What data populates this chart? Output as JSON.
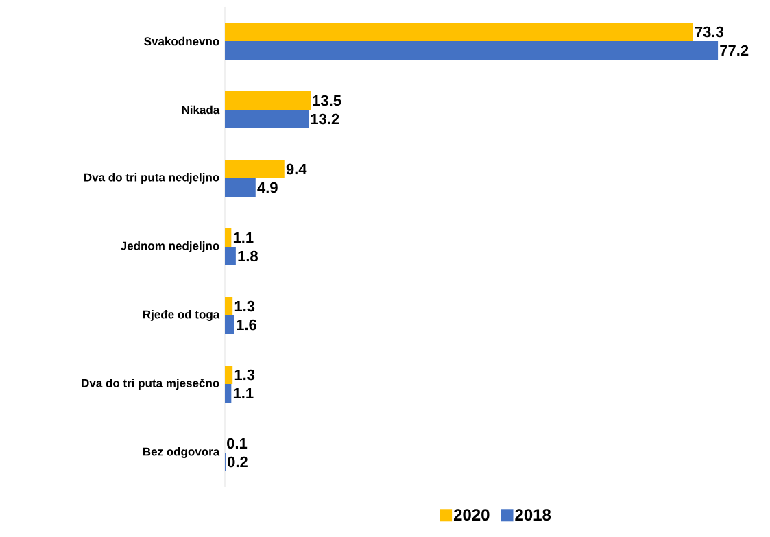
{
  "chart_data": {
    "type": "bar",
    "orientation": "horizontal",
    "categories": [
      "Svakodnevno",
      "Nikada",
      "Dva do tri puta nedjeljno",
      "Jednom nedjeljno",
      "Rjeđe od toga",
      "Dva do tri puta mjesečno",
      "Bez odgovora"
    ],
    "series": [
      {
        "name": "2020",
        "color": "#ffc000",
        "values": [
          73.3,
          13.5,
          9.4,
          1.1,
          1.3,
          1.3,
          0.1
        ]
      },
      {
        "name": "2018",
        "color": "#4472c4",
        "values": [
          77.2,
          13.2,
          4.9,
          1.8,
          1.6,
          1.1,
          0.2
        ]
      }
    ],
    "data_labels": true,
    "legend": "bottom",
    "tick_labels": "y"
  }
}
